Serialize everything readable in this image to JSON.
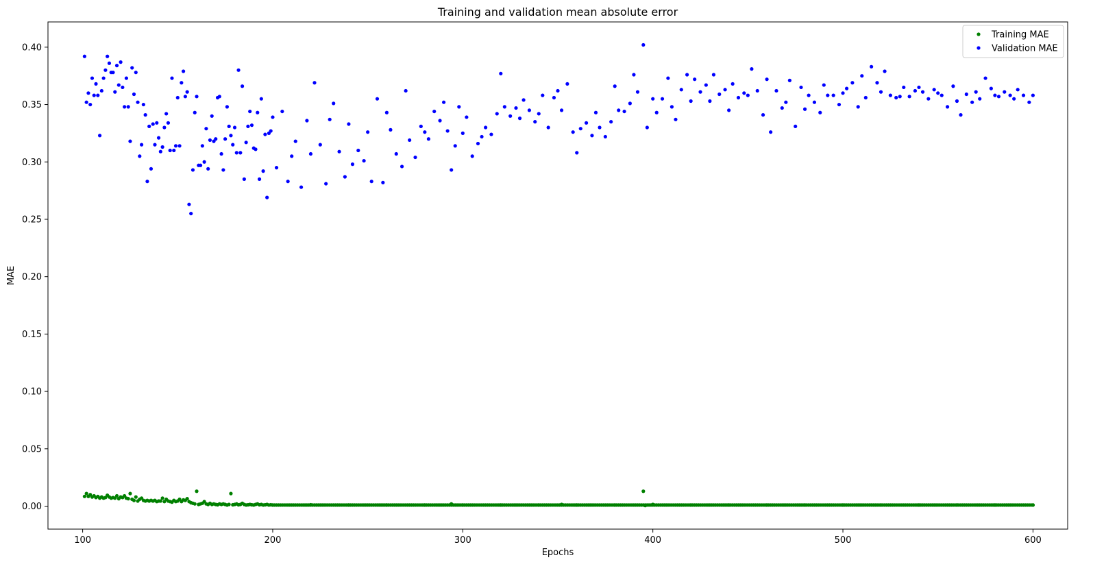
{
  "chart_data": {
    "type": "scatter",
    "title": "Training and validation mean absolute error",
    "xlabel": "Epochs",
    "ylabel": "MAE",
    "xlim": [
      81.75,
      618.25
    ],
    "ylim": [
      -0.02,
      0.422
    ],
    "xticks": [
      100,
      200,
      300,
      400,
      500,
      600
    ],
    "yticks": [
      0.0,
      0.05,
      0.1,
      0.15,
      0.2,
      0.25,
      0.3,
      0.35,
      0.4
    ],
    "xtick_labels": [
      "100",
      "200",
      "300",
      "400",
      "500",
      "600"
    ],
    "ytick_labels": [
      "0.00",
      "0.05",
      "0.10",
      "0.15",
      "0.20",
      "0.25",
      "0.30",
      "0.35",
      "0.40"
    ],
    "grid": false,
    "legend_position": "top-right",
    "series": [
      {
        "name": "Training MAE",
        "color": "#008000",
        "x": [
          101,
          102,
          103,
          104,
          105,
          106,
          107,
          108,
          109,
          110,
          111,
          112,
          113,
          114,
          115,
          116,
          117,
          118,
          119,
          120,
          121,
          122,
          123,
          124,
          125,
          126,
          127,
          128,
          129,
          130,
          131,
          132,
          133,
          134,
          135,
          136,
          137,
          138,
          139,
          140,
          141,
          142,
          143,
          144,
          145,
          146,
          147,
          148,
          149,
          150,
          151,
          152,
          153,
          154,
          155,
          156,
          157,
          158,
          159,
          160,
          161,
          162,
          163,
          164,
          165,
          166,
          167,
          168,
          169,
          170,
          171,
          172,
          173,
          174,
          175,
          176,
          177,
          178,
          179,
          180,
          181,
          182,
          183,
          184,
          185,
          186,
          187,
          188,
          189,
          190,
          191,
          192,
          193,
          194,
          195,
          196,
          197,
          198,
          199,
          200,
          220,
          240,
          260,
          280,
          294,
          300,
          320,
          340,
          352,
          360,
          380,
          395,
          396,
          400,
          420,
          440,
          460,
          480,
          500,
          520,
          540,
          560,
          580,
          600
        ],
        "y": [
          0.0085,
          0.011,
          0.0085,
          0.01,
          0.008,
          0.009,
          0.0075,
          0.0085,
          0.007,
          0.008,
          0.007,
          0.0075,
          0.0095,
          0.008,
          0.007,
          0.0075,
          0.007,
          0.009,
          0.0065,
          0.008,
          0.0075,
          0.009,
          0.007,
          0.0065,
          0.011,
          0.006,
          0.005,
          0.008,
          0.0045,
          0.006,
          0.007,
          0.005,
          0.0045,
          0.005,
          0.0045,
          0.005,
          0.0045,
          0.005,
          0.004,
          0.0045,
          0.0045,
          0.007,
          0.004,
          0.006,
          0.0045,
          0.004,
          0.0035,
          0.005,
          0.004,
          0.0045,
          0.006,
          0.004,
          0.0055,
          0.005,
          0.0065,
          0.004,
          0.003,
          0.0025,
          0.002,
          0.013,
          0.0015,
          0.002,
          0.0025,
          0.004,
          0.002,
          0.0015,
          0.0025,
          0.0015,
          0.002,
          0.0015,
          0.0012,
          0.002,
          0.0015,
          0.002,
          0.0015,
          0.001,
          0.0015,
          0.011,
          0.0012,
          0.0015,
          0.002,
          0.0012,
          0.0015,
          0.0025,
          0.0015,
          0.001,
          0.0012,
          0.0015,
          0.0012,
          0.001,
          0.0015,
          0.002,
          0.0012,
          0.0015,
          0.001,
          0.0012,
          0.0015,
          0.001,
          0.0012,
          0.001,
          0.0012,
          0.001,
          0.001,
          0.001,
          0.002,
          0.001,
          0.001,
          0.001,
          0.0015,
          0.001,
          0.001,
          0.013,
          0.0005,
          0.0015,
          0.001,
          0.001,
          0.001,
          0.001,
          0.001,
          0.001,
          0.001,
          0.001,
          0.001,
          0.001
        ]
      },
      {
        "name": "Validation MAE",
        "color": "#0000ff",
        "x": [
          101,
          102,
          103,
          104,
          105,
          106,
          107,
          108,
          109,
          110,
          111,
          112,
          113,
          114,
          115,
          116,
          117,
          118,
          119,
          120,
          121,
          122,
          123,
          124,
          125,
          126,
          127,
          128,
          129,
          130,
          131,
          132,
          133,
          134,
          135,
          136,
          137,
          138,
          139,
          140,
          141,
          142,
          143,
          144,
          145,
          146,
          147,
          148,
          149,
          150,
          151,
          152,
          153,
          154,
          155,
          156,
          157,
          158,
          159,
          160,
          161,
          162,
          163,
          164,
          165,
          166,
          167,
          168,
          169,
          170,
          171,
          172,
          173,
          174,
          175,
          176,
          177,
          178,
          179,
          180,
          181,
          182,
          183,
          184,
          185,
          186,
          187,
          188,
          189,
          190,
          191,
          192,
          193,
          194,
          195,
          196,
          197,
          198,
          199,
          200,
          202,
          205,
          208,
          210,
          212,
          215,
          218,
          220,
          222,
          225,
          228,
          230,
          232,
          235,
          238,
          240,
          242,
          245,
          248,
          250,
          252,
          255,
          258,
          260,
          262,
          265,
          268,
          270,
          272,
          275,
          278,
          280,
          282,
          285,
          288,
          290,
          292,
          294,
          296,
          298,
          300,
          302,
          305,
          308,
          310,
          312,
          315,
          318,
          320,
          322,
          325,
          328,
          330,
          332,
          335,
          338,
          340,
          342,
          345,
          348,
          350,
          352,
          355,
          358,
          360,
          362,
          365,
          368,
          370,
          372,
          375,
          378,
          380,
          382,
          385,
          388,
          390,
          392,
          395,
          397,
          400,
          402,
          405,
          408,
          410,
          412,
          415,
          418,
          420,
          422,
          425,
          428,
          430,
          432,
          435,
          438,
          440,
          442,
          445,
          448,
          450,
          452,
          455,
          458,
          460,
          462,
          465,
          468,
          470,
          472,
          475,
          478,
          480,
          482,
          485,
          488,
          490,
          492,
          495,
          498,
          500,
          502,
          505,
          508,
          510,
          512,
          515,
          518,
          520,
          522,
          525,
          528,
          530,
          532,
          535,
          538,
          540,
          542,
          545,
          548,
          550,
          552,
          555,
          558,
          560,
          562,
          565,
          568,
          570,
          572,
          575,
          578,
          580,
          582,
          585,
          588,
          590,
          592,
          595,
          598,
          600
        ],
        "y": [
          0.392,
          0.352,
          0.36,
          0.35,
          0.373,
          0.358,
          0.368,
          0.358,
          0.323,
          0.362,
          0.373,
          0.38,
          0.392,
          0.386,
          0.378,
          0.378,
          0.361,
          0.384,
          0.367,
          0.387,
          0.365,
          0.348,
          0.373,
          0.348,
          0.318,
          0.382,
          0.359,
          0.378,
          0.352,
          0.305,
          0.315,
          0.35,
          0.341,
          0.283,
          0.331,
          0.294,
          0.333,
          0.315,
          0.334,
          0.321,
          0.309,
          0.313,
          0.33,
          0.342,
          0.334,
          0.31,
          0.373,
          0.31,
          0.314,
          0.356,
          0.314,
          0.369,
          0.379,
          0.357,
          0.361,
          0.263,
          0.255,
          0.293,
          0.343,
          0.357,
          0.297,
          0.297,
          0.314,
          0.3,
          0.329,
          0.294,
          0.319,
          0.34,
          0.318,
          0.32,
          0.356,
          0.357,
          0.307,
          0.293,
          0.32,
          0.348,
          0.331,
          0.323,
          0.315,
          0.33,
          0.308,
          0.38,
          0.308,
          0.366,
          0.285,
          0.317,
          0.331,
          0.344,
          0.332,
          0.312,
          0.311,
          0.343,
          0.285,
          0.355,
          0.292,
          0.324,
          0.269,
          0.325,
          0.327,
          0.339,
          0.295,
          0.344,
          0.283,
          0.305,
          0.318,
          0.278,
          0.336,
          0.307,
          0.369,
          0.315,
          0.281,
          0.337,
          0.351,
          0.309,
          0.287,
          0.333,
          0.298,
          0.31,
          0.301,
          0.326,
          0.283,
          0.355,
          0.282,
          0.343,
          0.328,
          0.307,
          0.296,
          0.362,
          0.319,
          0.304,
          0.331,
          0.326,
          0.32,
          0.344,
          0.336,
          0.352,
          0.327,
          0.293,
          0.314,
          0.348,
          0.325,
          0.339,
          0.305,
          0.316,
          0.322,
          0.33,
          0.324,
          0.342,
          0.377,
          0.348,
          0.34,
          0.347,
          0.338,
          0.354,
          0.345,
          0.335,
          0.342,
          0.358,
          0.33,
          0.356,
          0.362,
          0.345,
          0.368,
          0.326,
          0.308,
          0.329,
          0.334,
          0.323,
          0.343,
          0.33,
          0.322,
          0.335,
          0.366,
          0.345,
          0.344,
          0.351,
          0.376,
          0.361,
          0.402,
          0.33,
          0.355,
          0.343,
          0.355,
          0.373,
          0.348,
          0.337,
          0.363,
          0.376,
          0.353,
          0.372,
          0.361,
          0.367,
          0.353,
          0.376,
          0.359,
          0.363,
          0.345,
          0.368,
          0.356,
          0.36,
          0.358,
          0.381,
          0.362,
          0.341,
          0.372,
          0.326,
          0.362,
          0.347,
          0.352,
          0.371,
          0.331,
          0.365,
          0.346,
          0.358,
          0.352,
          0.343,
          0.367,
          0.358,
          0.358,
          0.35,
          0.36,
          0.364,
          0.369,
          0.348,
          0.375,
          0.356,
          0.383,
          0.369,
          0.361,
          0.379,
          0.358,
          0.356,
          0.357,
          0.365,
          0.357,
          0.362,
          0.365,
          0.361,
          0.355,
          0.363,
          0.36,
          0.358,
          0.348,
          0.366,
          0.353,
          0.341,
          0.359,
          0.352,
          0.361,
          0.355,
          0.373,
          0.364,
          0.358,
          0.357,
          0.361,
          0.358,
          0.355,
          0.363,
          0.358,
          0.352,
          0.358
        ]
      }
    ]
  }
}
